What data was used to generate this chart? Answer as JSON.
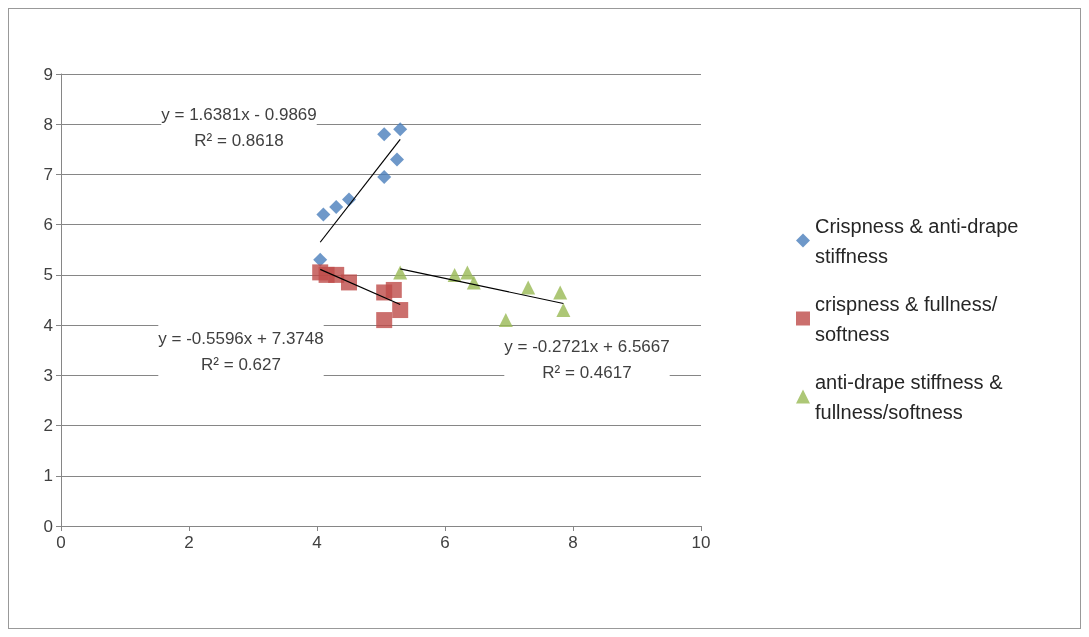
{
  "chart_data": {
    "type": "scatter",
    "xlim": [
      0,
      10
    ],
    "xticks": [
      0,
      2,
      4,
      6,
      8,
      10
    ],
    "ylim": [
      0,
      9
    ],
    "yticks": [
      0,
      1,
      2,
      3,
      4,
      5,
      6,
      7,
      8,
      9
    ],
    "grid": "y",
    "legend": "right",
    "series": [
      {
        "name": "Crispness & anti-drape stiffness",
        "color": "#4a7ebb",
        "marker": "diamond",
        "x": [
          4.05,
          4.1,
          4.3,
          4.5,
          5.05,
          5.05,
          5.25,
          5.3
        ],
        "values": [
          5.3,
          6.2,
          6.35,
          6.5,
          6.95,
          7.8,
          7.3,
          7.9
        ]
      },
      {
        "name": "crispness & fullness/softness",
        "color": "#be4b48",
        "marker": "square",
        "x": [
          4.05,
          4.15,
          4.3,
          4.5,
          5.05,
          5.2,
          5.05,
          5.3
        ],
        "values": [
          5.05,
          5.0,
          5.0,
          4.85,
          4.65,
          4.7,
          4.1,
          4.3
        ]
      },
      {
        "name": "anti-drape stiffness & fullness/softness",
        "color": "#98b954",
        "marker": "triangle",
        "x": [
          5.3,
          6.15,
          6.35,
          6.45,
          6.95,
          7.3,
          7.8,
          7.85
        ],
        "values": [
          5.05,
          5.0,
          5.05,
          4.85,
          4.1,
          4.75,
          4.65,
          4.3
        ]
      },
      {
        "type": "line",
        "color": "#000000",
        "marker": "none",
        "x": [
          4.05,
          5.3
        ],
        "values": [
          5.65,
          7.7
        ]
      },
      {
        "type": "line",
        "color": "#000000",
        "marker": "none",
        "x": [
          4.05,
          5.3
        ],
        "values": [
          5.11,
          4.41
        ]
      },
      {
        "type": "line",
        "color": "#000000",
        "marker": "none",
        "x": [
          5.3,
          7.85
        ],
        "values": [
          5.12,
          4.43
        ]
      }
    ],
    "annotations": [
      "y = 1.6381x - 0.9869\nR² = 0.8618",
      "y = -0.5596x + 7.3748\nR² = 0.627",
      "y = -0.2721x + 6.5667\nR² = 0.4617"
    ]
  }
}
